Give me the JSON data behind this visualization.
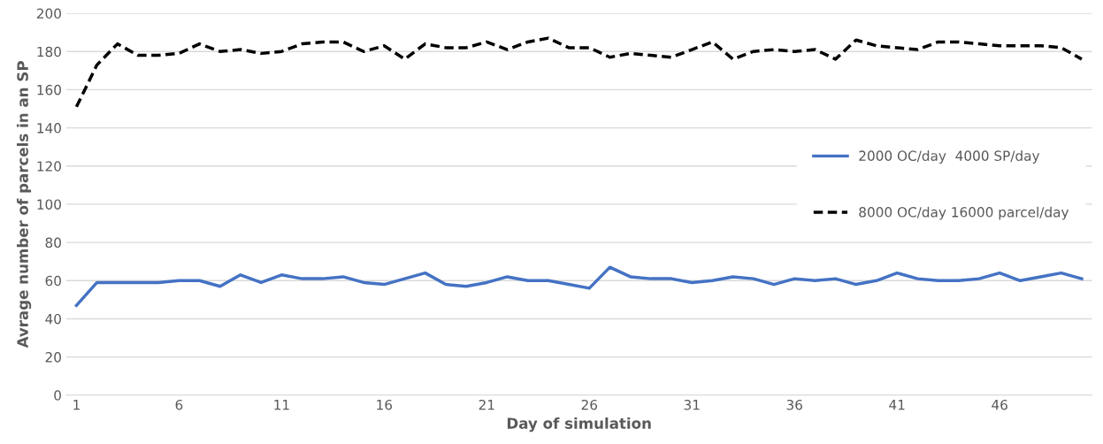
{
  "chart_data": {
    "type": "line",
    "xlabel": "Day of simulation",
    "ylabel": "Avrage number of parcels in an SP",
    "categories": [
      "1",
      null,
      null,
      null,
      null,
      "6",
      null,
      null,
      null,
      null,
      "11",
      null,
      null,
      null,
      null,
      "16",
      null,
      null,
      null,
      null,
      "21",
      null,
      null,
      null,
      null,
      "26",
      null,
      null,
      null,
      null,
      "31",
      null,
      null,
      null,
      null,
      "36",
      null,
      null,
      null,
      null,
      "41",
      null,
      null,
      null,
      null,
      "46",
      null,
      null,
      null,
      null
    ],
    "series": [
      {
        "name": "2000 OC/day  4000 SP/day",
        "color": "#4472c4",
        "line_style": "solid",
        "values": [
          47,
          59,
          59,
          59,
          59,
          60,
          60,
          57,
          63,
          59,
          63,
          61,
          61,
          62,
          59,
          58,
          61,
          64,
          58,
          57,
          59,
          62,
          60,
          60,
          58,
          56,
          67,
          62,
          61,
          61,
          59,
          60,
          62,
          61,
          58,
          61,
          60,
          61,
          58,
          60,
          64,
          61,
          60,
          60,
          61,
          64,
          60,
          62,
          64,
          61
        ]
      },
      {
        "name": "8000 OC/day 16000 parcel/day",
        "color": "#000000",
        "line_style": "dashed",
        "values": [
          151,
          173,
          184,
          178,
          178,
          179,
          184,
          180,
          181,
          179,
          180,
          184,
          185,
          185,
          180,
          183,
          176,
          184,
          182,
          182,
          185,
          181,
          185,
          187,
          182,
          182,
          177,
          179,
          178,
          177,
          181,
          185,
          176,
          180,
          181,
          180,
          181,
          176,
          186,
          183,
          182,
          181,
          185,
          185,
          184,
          183,
          183,
          183,
          182,
          176
        ]
      }
    ],
    "ylim": [
      0,
      200
    ],
    "yticks": [
      0,
      20,
      40,
      60,
      80,
      100,
      120,
      140,
      160,
      180,
      200
    ],
    "grid": "y",
    "legend": "right",
    "marker": "none"
  }
}
